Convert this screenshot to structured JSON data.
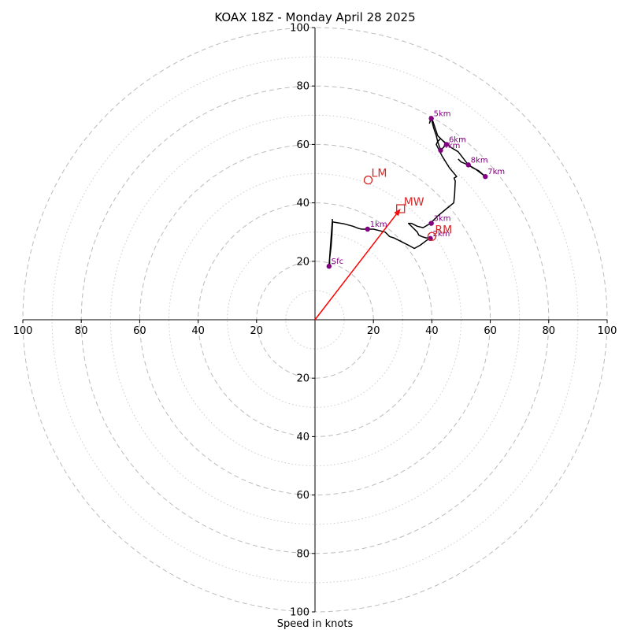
{
  "chart_data": {
    "type": "hodograph",
    "title": "KOAX 18Z - Monday April 28 2025",
    "xlabel": "Speed in knots",
    "unit": "knots",
    "range_max": 100,
    "major_rings": [
      20,
      40,
      60,
      80,
      100
    ],
    "minor_rings": [
      10,
      30,
      50,
      70,
      90
    ],
    "tick_values": [
      20,
      40,
      60,
      80,
      100
    ],
    "grid": true,
    "colors": {
      "axis": "#000000",
      "grid": "#bbbbbb",
      "trace": "#000000",
      "height_marker": "#800080",
      "motion": "#d62728",
      "mean_wind_vector": "#ff0000"
    },
    "trace": [
      [
        5.9,
        34.5
      ],
      [
        6.0,
        33.5
      ],
      [
        5.8,
        29.0
      ],
      [
        5.5,
        25.0
      ],
      [
        5.0,
        21.0
      ],
      [
        5.0,
        19.0
      ],
      [
        4.8,
        18.3
      ],
      [
        5.9,
        33.5
      ],
      [
        10.0,
        32.8
      ],
      [
        13.0,
        32.0
      ],
      [
        15.0,
        31.2
      ],
      [
        16.0,
        31.0
      ],
      [
        18.0,
        31.0
      ],
      [
        20.0,
        31.0
      ],
      [
        22.0,
        30.5
      ],
      [
        24.0,
        30.0
      ],
      [
        25.0,
        29.0
      ],
      [
        25.5,
        28.5
      ],
      [
        27.0,
        28.0
      ],
      [
        29.0,
        27.0
      ],
      [
        32.0,
        25.5
      ],
      [
        34.0,
        24.4
      ],
      [
        36.0,
        25.5
      ],
      [
        38.0,
        27.0
      ],
      [
        39.5,
        28.0
      ],
      [
        38.0,
        28.0
      ],
      [
        36.5,
        28.5
      ],
      [
        35.5,
        29.0
      ],
      [
        35.0,
        30.0
      ],
      [
        33.5,
        31.5
      ],
      [
        32.0,
        33.0
      ],
      [
        33.0,
        33.0
      ],
      [
        35.0,
        32.0
      ],
      [
        37.0,
        31.5
      ],
      [
        39.5,
        33.0
      ],
      [
        42.0,
        35.5
      ],
      [
        45.0,
        38.0
      ],
      [
        47.5,
        40.0
      ],
      [
        47.8,
        43.0
      ],
      [
        48.0,
        47.5
      ],
      [
        47.6,
        48.5
      ],
      [
        48.5,
        49.0
      ],
      [
        46.0,
        52.0
      ],
      [
        43.5,
        56.0
      ],
      [
        42.5,
        58.0
      ],
      [
        41.5,
        60.0
      ],
      [
        42.0,
        61.0
      ],
      [
        43.0,
        62.0
      ],
      [
        45.0,
        60.0
      ],
      [
        43.0,
        58.0
      ],
      [
        42.0,
        61.0
      ],
      [
        41.5,
        63.0
      ],
      [
        41.0,
        64.5
      ],
      [
        40.5,
        66.0
      ],
      [
        39.8,
        68.9
      ],
      [
        39.2,
        67.3
      ],
      [
        39.8,
        69.5
      ],
      [
        41.0,
        66.0
      ],
      [
        42.0,
        63.0
      ],
      [
        43.5,
        61.5
      ],
      [
        46.5,
        59.0
      ],
      [
        49.0,
        57.5
      ],
      [
        52.5,
        53.0
      ],
      [
        55.0,
        51.5
      ],
      [
        57.0,
        50.0
      ],
      [
        58.3,
        49.0
      ],
      [
        56.0,
        51.0
      ],
      [
        54.0,
        52.0
      ],
      [
        52.5,
        53.0
      ],
      [
        50.0,
        54.0
      ],
      [
        49.0,
        55.0
      ]
    ],
    "height_markers": [
      {
        "label": "Sfc",
        "u": 4.8,
        "v": 18.3
      },
      {
        "label": "1km",
        "u": 18.0,
        "v": 31.0
      },
      {
        "label": "2km",
        "u": 39.5,
        "v": 27.8
      },
      {
        "label": "3km",
        "u": 39.8,
        "v": 33.0
      },
      {
        "label": "4km",
        "u": 43.0,
        "v": 58.0
      },
      {
        "label": "5km",
        "u": 39.8,
        "v": 68.9
      },
      {
        "label": "6km",
        "u": 45.0,
        "v": 60.0
      },
      {
        "label": "7km",
        "u": 58.3,
        "v": 49.0
      },
      {
        "label": "8km",
        "u": 52.5,
        "v": 53.0
      }
    ],
    "storm_motion": [
      {
        "label": "LM",
        "u": 18.2,
        "v": 47.8,
        "marker": "circle"
      },
      {
        "label": "MW",
        "u": 29.3,
        "v": 38.0,
        "marker": "square"
      },
      {
        "label": "RM",
        "u": 40.0,
        "v": 28.5,
        "marker": "circle"
      }
    ],
    "mean_wind_vector": {
      "from": [
        0,
        0
      ],
      "to": [
        29.3,
        38.0
      ]
    }
  }
}
